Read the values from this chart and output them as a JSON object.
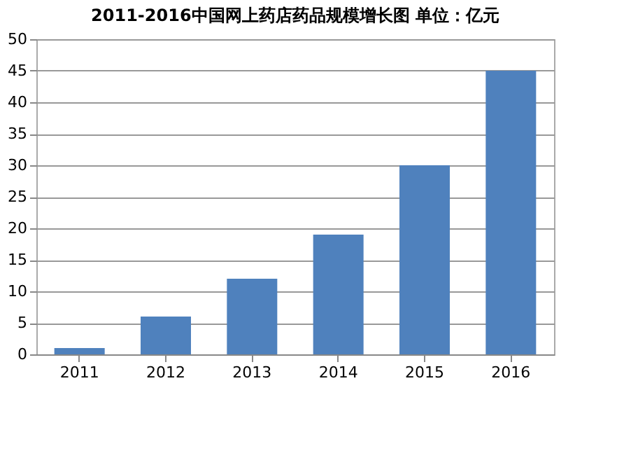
{
  "chart_data": {
    "type": "bar",
    "title": "2011-2016中国网上药店药品规模增长图  单位：亿元",
    "categories": [
      "2011",
      "2012",
      "2013",
      "2014",
      "2015",
      "2016"
    ],
    "values": [
      1,
      6,
      12,
      19,
      30,
      45
    ],
    "color": "#4f81bd",
    "ylim": [
      0,
      50
    ],
    "yticks": [
      0,
      5,
      10,
      15,
      20,
      25,
      30,
      35,
      40,
      45,
      50
    ],
    "grid": "y"
  }
}
